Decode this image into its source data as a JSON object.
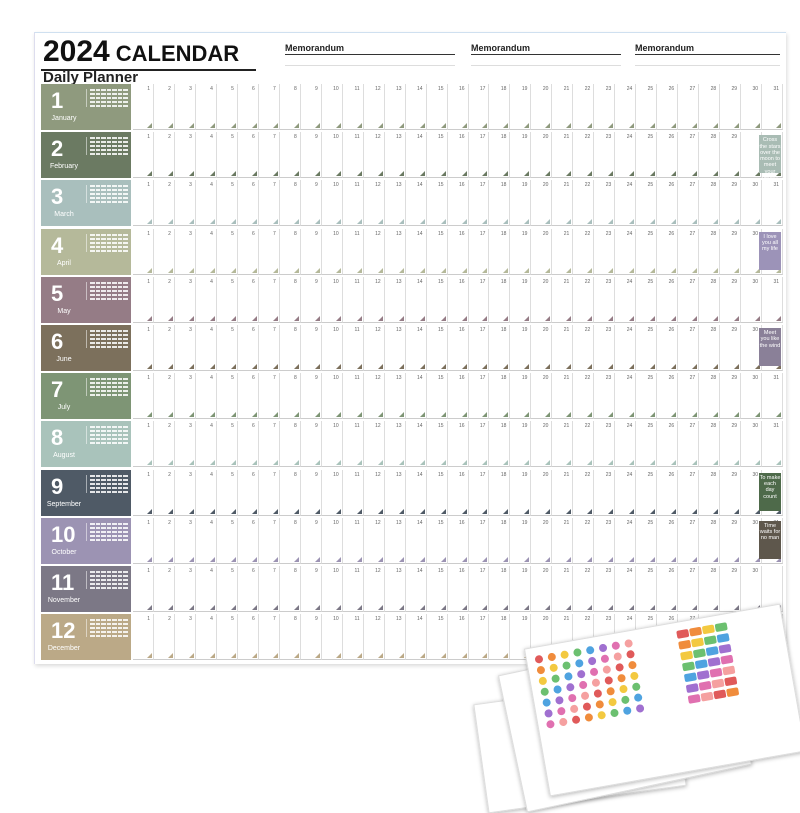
{
  "header": {
    "year": "2024",
    "title": "CALENDAR",
    "subtitle": "Daily Planner",
    "memos": [
      "Memorandum",
      "Memorandum",
      "Memorandum"
    ]
  },
  "months": [
    {
      "num": "1",
      "name": "January",
      "days": 31,
      "color": "#8f9a7e"
    },
    {
      "num": "2",
      "name": "February",
      "days": 29,
      "color": "#6b7a62",
      "quote": "Cross the stars over the moon to meet your better-self",
      "quote_color": "#a9bcb4"
    },
    {
      "num": "3",
      "name": "March",
      "days": 31,
      "color": "#a9bfbd"
    },
    {
      "num": "4",
      "name": "April",
      "days": 30,
      "color": "#b5b99a",
      "quote": "I love you all my life",
      "quote_color": "#9c93b8"
    },
    {
      "num": "5",
      "name": "May",
      "days": 31,
      "color": "#957c86"
    },
    {
      "num": "6",
      "name": "June",
      "days": 30,
      "color": "#7c705c",
      "quote": "Meet you like the wind",
      "quote_color": "#8a8098"
    },
    {
      "num": "7",
      "name": "July",
      "days": 31,
      "color": "#7e9575"
    },
    {
      "num": "8",
      "name": "August",
      "days": 31,
      "color": "#a9c3bb"
    },
    {
      "num": "9",
      "name": "September",
      "days": 30,
      "color": "#4f5a66",
      "quote": "To make each day count",
      "quote_color": "#4e6a4a"
    },
    {
      "num": "10",
      "name": "October",
      "days": 31,
      "color": "#9c93b3",
      "quote": "Time waits for no man",
      "quote_color": "#5e574c"
    },
    {
      "num": "11",
      "name": "November",
      "days": 30,
      "color": "#7c7886"
    },
    {
      "num": "12",
      "name": "December",
      "days": 31,
      "color": "#bba987"
    }
  ],
  "sticker_colors": [
    "#e05a5a",
    "#f08c3c",
    "#f3c940",
    "#6cc070",
    "#4fa3e0",
    "#a070d0",
    "#e070b0",
    "#f5a0a0"
  ]
}
